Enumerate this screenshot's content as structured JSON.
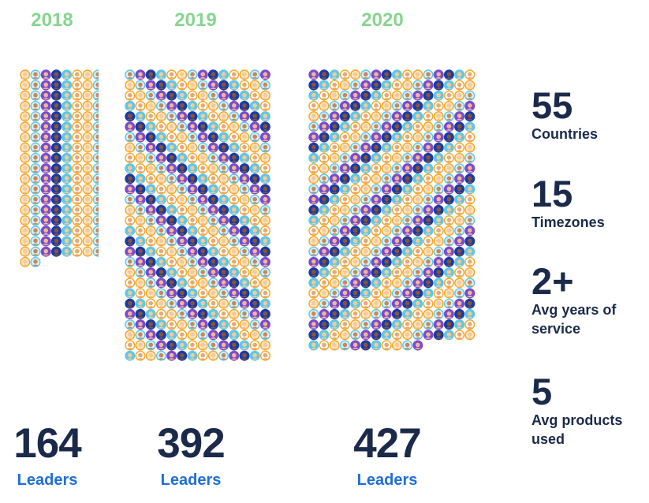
{
  "chart_data": {
    "type": "pictogram",
    "columns": [
      {
        "year": "2018",
        "value": 164,
        "label": "Leaders"
      },
      {
        "year": "2019",
        "value": 392,
        "label": "Leaders"
      },
      {
        "year": "2020",
        "value": 427,
        "label": "Leaders"
      }
    ]
  },
  "stats": [
    {
      "value": "55",
      "label": "Countries"
    },
    {
      "value": "15",
      "label": "Timezones"
    },
    {
      "value": "2+",
      "label": "Avg years of service"
    },
    {
      "value": "5",
      "label": "Avg products used"
    }
  ],
  "colors": {
    "year": "#86d58e",
    "count": "#1b2a4a",
    "label": "#1f6fd6",
    "avatar_ring_orange": "#f5a623",
    "avatar_ring_blue": "#5cc8e6",
    "avatar_fill_purple": "#7a4bd1",
    "avatar_fill_navy": "#1a3aa8"
  }
}
